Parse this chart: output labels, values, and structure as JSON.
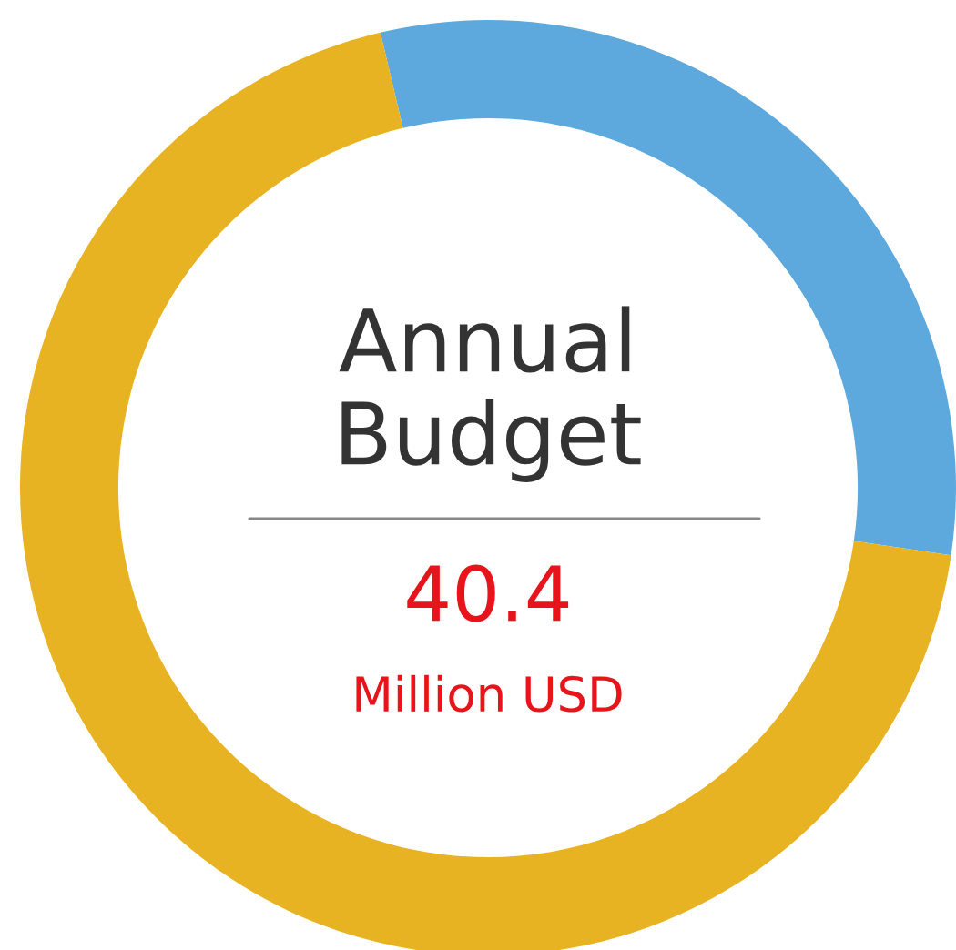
{
  "chart_data": {
    "type": "donut",
    "title": "Annual\nBudget",
    "categories": [
      null,
      null
    ],
    "values": [
      31,
      69
    ],
    "colors": [
      "#5da9dd",
      "#e8b323"
    ],
    "annotations": [
      "40.4",
      "Million USD"
    ]
  }
}
